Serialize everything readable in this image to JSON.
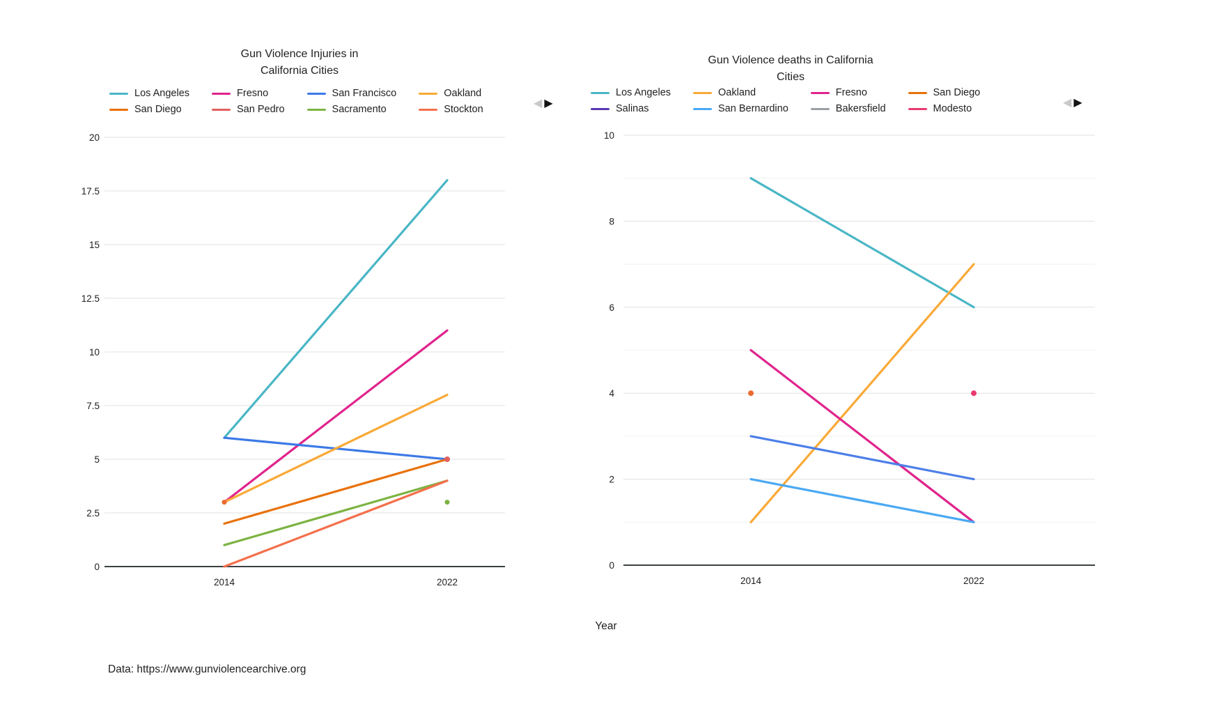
{
  "page": {
    "xlabel": "Year",
    "attribution": "Data: https://www.gunviolencearchive.org",
    "background": "#ffffff"
  },
  "legend_nav": {
    "prev": "◀",
    "next": "▶",
    "prev_color": "#c9c9c9",
    "next_color": "#141414"
  },
  "chart_data": [
    {
      "id": "injuries",
      "type": "line",
      "title_line1": "Gun Violence Injuries in",
      "title_line2": "California Cities",
      "x_categories": [
        "2014",
        "2022"
      ],
      "xlabel": "Year",
      "ylim": [
        0,
        20
      ],
      "y_ticks": [
        0,
        2.5,
        5,
        7.5,
        10,
        12.5,
        15,
        17.5,
        20
      ],
      "y_tick_labels": [
        "0",
        "2.5",
        "5",
        "7.5",
        "10",
        "12.5",
        "15",
        "17.5",
        "20"
      ],
      "grid": "horizontal",
      "legend_position": "top",
      "series": [
        {
          "name": "Los Angeles",
          "color": "#49b6c5",
          "values": [
            6,
            18
          ]
        },
        {
          "name": "Fresno",
          "color": "#e0248c",
          "values": [
            3,
            11
          ]
        },
        {
          "name": "San Francisco",
          "color": "#3c79e6",
          "values": [
            6,
            5
          ]
        },
        {
          "name": "Oakland",
          "color": "#f9a937",
          "values": [
            3,
            8
          ]
        },
        {
          "name": "San Diego",
          "color": "#e8710a",
          "values": [
            2,
            5
          ]
        },
        {
          "name": "San Pedro",
          "color": "#e2605e",
          "values": [
            null,
            5
          ],
          "point_only": true
        },
        {
          "name": "Sacramento",
          "color": "#7cb342",
          "values": [
            1,
            4
          ]
        },
        {
          "name": "Stockton",
          "color": "#f4704c",
          "values": [
            0,
            4
          ]
        }
      ],
      "markers": [
        {
          "x": "2014",
          "y": 3,
          "color": "#ec6a2f"
        },
        {
          "x": "2022",
          "y": 3,
          "color": "#7cb342"
        }
      ]
    },
    {
      "id": "deaths",
      "type": "line",
      "title_line1": "Gun Violence deaths in California",
      "title_line2": "Cities",
      "x_categories": [
        "2014",
        "2022"
      ],
      "xlabel": "Year",
      "ylim": [
        0,
        10
      ],
      "y_ticks": [
        0,
        2,
        4,
        6,
        8,
        10
      ],
      "y_tick_labels": [
        "0",
        "2",
        "4",
        "6",
        "8",
        "10"
      ],
      "y_minor_ticks": [
        1,
        3,
        5,
        7,
        9
      ],
      "grid": "horizontal",
      "legend_position": "top",
      "series": [
        {
          "name": "Los Angeles",
          "color": "#49b6c5",
          "values": [
            9,
            6
          ]
        },
        {
          "name": "Oakland",
          "color": "#f9a937",
          "values": [
            1,
            7
          ]
        },
        {
          "name": "Fresno",
          "color": "#e0248c",
          "values": [
            5,
            1
          ]
        },
        {
          "name": "San Diego",
          "color": "#e8710a",
          "values": [
            4,
            null
          ],
          "point_only": true,
          "point_color": "#ec6a2f"
        },
        {
          "name": "Salinas",
          "color": "#5a37b2",
          "values": [
            3,
            2
          ],
          "line_color": "#4c7fe8"
        },
        {
          "name": "San Bernardino",
          "color": "#4aa9f4",
          "values": [
            2,
            1
          ]
        },
        {
          "name": "Bakersfield",
          "color": "#9aa0a6",
          "values": [
            null,
            null
          ]
        },
        {
          "name": "Modesto",
          "color": "#e93a70",
          "values": [
            null,
            4
          ],
          "point_only": true
        }
      ],
      "markers": []
    }
  ]
}
